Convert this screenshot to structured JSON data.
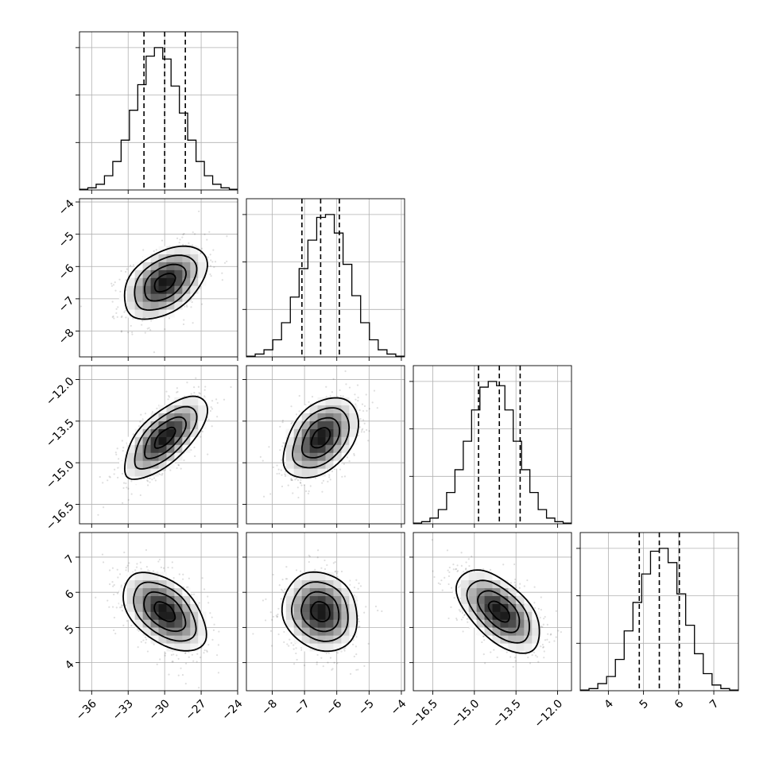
{
  "chart_data": {
    "type": "corner",
    "grid": true,
    "parameters": [
      {
        "ticks": [
          -36,
          -33,
          -30,
          -27,
          -24
        ],
        "tick_labels": [
          "−36",
          "−33",
          "−30",
          "−27",
          "−24"
        ],
        "range": [
          -37,
          -24
        ],
        "mean": -30.0,
        "sigma": 1.7,
        "quantiles": [
          -31.7,
          -30.0,
          -28.3
        ]
      },
      {
        "ticks": [
          -8,
          -7,
          -6,
          -5,
          -4
        ],
        "tick_labels": [
          "−8",
          "−7",
          "−6",
          "−5",
          "−4"
        ],
        "range": [
          -8.8,
          -3.9
        ],
        "mean": -6.5,
        "sigma": 0.58,
        "quantiles": [
          -7.08,
          -6.5,
          -5.92
        ]
      },
      {
        "ticks": [
          -16.5,
          -15.0,
          -13.5,
          -12.0
        ],
        "tick_labels": [
          "−16.5",
          "−15.0",
          "−13.5",
          "−12.0"
        ],
        "range": [
          -17.2,
          -11.5
        ],
        "mean": -14.1,
        "sigma": 0.75,
        "quantiles": [
          -14.85,
          -14.1,
          -13.35
        ]
      },
      {
        "ticks": [
          4,
          5,
          6,
          7
        ],
        "tick_labels": [
          "4",
          "5",
          "6",
          "7"
        ],
        "range": [
          3.2,
          7.7
        ],
        "mean": 5.45,
        "sigma": 0.57,
        "quantiles": [
          4.88,
          5.45,
          6.02
        ]
      }
    ],
    "correlations": [
      {
        "pair": [
          1,
          0
        ],
        "rho": 0.42
      },
      {
        "pair": [
          2,
          0
        ],
        "rho": 0.66
      },
      {
        "pair": [
          2,
          1
        ],
        "rho": 0.42
      },
      {
        "pair": [
          3,
          0
        ],
        "rho": -0.46
      },
      {
        "pair": [
          3,
          1
        ],
        "rho": -0.1
      },
      {
        "pair": [
          3,
          2
        ],
        "rho": -0.55
      }
    ],
    "histograms": [
      [
        0.005,
        0.015,
        0.04,
        0.1,
        0.2,
        0.35,
        0.56,
        0.74,
        0.94,
        1.0,
        0.92,
        0.73,
        0.54,
        0.35,
        0.2,
        0.1,
        0.04,
        0.015,
        0.005
      ],
      [
        0.005,
        0.02,
        0.05,
        0.12,
        0.24,
        0.42,
        0.62,
        0.82,
        0.98,
        1.0,
        0.87,
        0.65,
        0.43,
        0.24,
        0.12,
        0.05,
        0.02,
        0.005
      ],
      [
        0.005,
        0.015,
        0.04,
        0.1,
        0.22,
        0.38,
        0.58,
        0.8,
        0.96,
        1.0,
        0.97,
        0.8,
        0.58,
        0.38,
        0.22,
        0.1,
        0.04,
        0.015,
        0.005
      ],
      [
        0.005,
        0.015,
        0.05,
        0.1,
        0.22,
        0.42,
        0.62,
        0.82,
        0.98,
        1.0,
        0.9,
        0.68,
        0.46,
        0.26,
        0.12,
        0.04,
        0.015,
        0.005
      ]
    ]
  }
}
